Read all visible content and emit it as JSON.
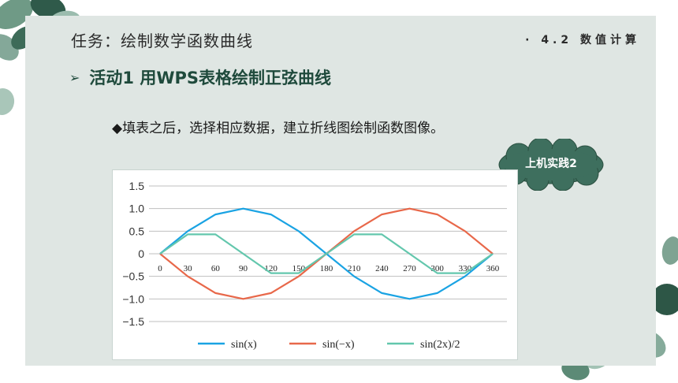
{
  "header": {
    "title": "任务：绘制数学函数曲线",
    "section": "· 4.2 数值计算"
  },
  "activity": {
    "title": "活动1 用WPS表格绘制正弦曲线"
  },
  "instruction": "◆填表之后，选择相应数据，建立折线图绘制函数图像。",
  "badge": {
    "label": "上机实践2"
  },
  "colors": {
    "panel": "#dfe6e3",
    "accent": "#1f4a3c",
    "cloud": "#3e6f5e",
    "sin_x": "#1aa3e3",
    "sin_neg_x": "#e8684a",
    "sin_2x_half": "#63c7ad"
  },
  "chart_data": {
    "type": "line",
    "categories": [
      "0",
      "30",
      "60",
      "90",
      "120",
      "150",
      "180",
      "210",
      "240",
      "270",
      "300",
      "330",
      "360"
    ],
    "x": [
      0,
      30,
      60,
      90,
      120,
      150,
      180,
      210,
      240,
      270,
      300,
      330,
      360
    ],
    "yticks": [
      "1.5",
      "1.0",
      "0.5",
      "0",
      "−0.5",
      "−1.0",
      "−1.5"
    ],
    "ylim": [
      -1.5,
      1.5
    ],
    "grid": true,
    "legend": "bottom",
    "series": [
      {
        "name": "sin(x)",
        "color": "#1aa3e3",
        "values": [
          0,
          0.5,
          0.87,
          1.0,
          0.87,
          0.5,
          0,
          -0.5,
          -0.87,
          -1.0,
          -0.87,
          -0.5,
          0
        ]
      },
      {
        "name": "sin(−x)",
        "color": "#e8684a",
        "values": [
          0,
          -0.5,
          -0.87,
          -1.0,
          -0.87,
          -0.5,
          0,
          0.5,
          0.87,
          1.0,
          0.87,
          0.5,
          0
        ]
      },
      {
        "name": "sin(2x)/2",
        "color": "#63c7ad",
        "values": [
          0,
          0.43,
          0.43,
          0,
          -0.43,
          -0.43,
          0,
          0.43,
          0.43,
          0,
          -0.43,
          -0.43,
          0
        ]
      }
    ]
  }
}
